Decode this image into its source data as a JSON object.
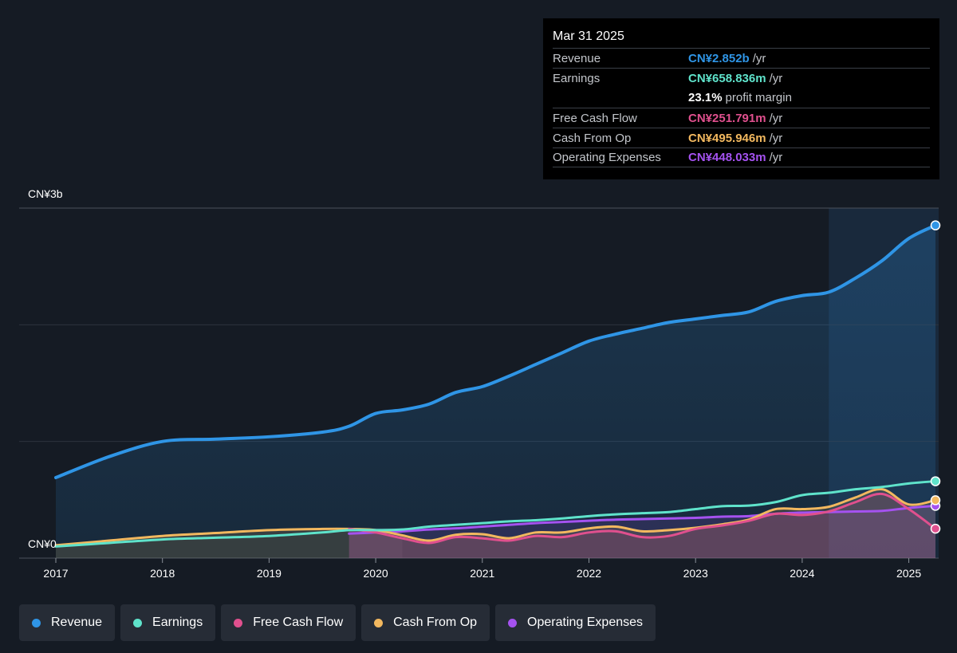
{
  "tooltip": {
    "date": "Mar 31 2025",
    "rows": [
      {
        "label": "Revenue",
        "value": "CN¥2.852b",
        "unit": "/yr",
        "color": "#2f95e6"
      },
      {
        "label": "Earnings",
        "value": "CN¥658.836m",
        "unit": "/yr",
        "color": "#5fe3cb"
      },
      {
        "label": "",
        "value": "23.1%",
        "unit": "profit margin",
        "color": "#ffffff"
      },
      {
        "label": "Free Cash Flow",
        "value": "CN¥251.791m",
        "unit": "/yr",
        "color": "#e0508e"
      },
      {
        "label": "Cash From Op",
        "value": "CN¥495.946m",
        "unit": "/yr",
        "color": "#f2b85f"
      },
      {
        "label": "Operating Expenses",
        "value": "CN¥448.033m",
        "unit": "/yr",
        "color": "#a552f0"
      }
    ]
  },
  "legend": [
    {
      "label": "Revenue",
      "color": "#2f95e6"
    },
    {
      "label": "Earnings",
      "color": "#5fe3cb"
    },
    {
      "label": "Free Cash Flow",
      "color": "#e0508e"
    },
    {
      "label": "Cash From Op",
      "color": "#f2b85f"
    },
    {
      "label": "Operating Expenses",
      "color": "#a552f0"
    }
  ],
  "chart_data": {
    "type": "area",
    "y_top_label": "CN¥3b",
    "y_zero_label": "CN¥0",
    "ylim": [
      0,
      3000
    ],
    "xlim": [
      2016.6,
      2025.25
    ],
    "x_ticks": [
      "2017",
      "2018",
      "2019",
      "2020",
      "2021",
      "2022",
      "2023",
      "2024",
      "2025"
    ],
    "gridlines": [
      0,
      1000,
      2000,
      3000
    ],
    "highlight_start": 2024.25,
    "past_shade_range": [
      2019.75,
      2020.25
    ],
    "series": [
      {
        "name": "Revenue",
        "color": "#2f95e6",
        "area": true,
        "x": [
          2017.0,
          2017.5,
          2018.0,
          2018.5,
          2019.0,
          2019.5,
          2019.75,
          2020.0,
          2020.25,
          2020.5,
          2020.75,
          2021.0,
          2021.25,
          2021.5,
          2021.75,
          2022.0,
          2022.25,
          2022.5,
          2022.75,
          2023.0,
          2023.25,
          2023.5,
          2023.75,
          2024.0,
          2024.25,
          2024.5,
          2024.75,
          2025.0,
          2025.25
        ],
        "y": [
          690,
          870,
          1000,
          1020,
          1040,
          1080,
          1130,
          1240,
          1270,
          1320,
          1420,
          1470,
          1560,
          1660,
          1760,
          1860,
          1920,
          1970,
          2020,
          2050,
          2080,
          2110,
          2200,
          2250,
          2280,
          2400,
          2550,
          2740,
          2852
        ]
      },
      {
        "name": "Earnings",
        "color": "#5fe3cb",
        "area": false,
        "x": [
          2017.0,
          2017.5,
          2018.0,
          2018.5,
          2019.0,
          2019.5,
          2019.75,
          2020.0,
          2020.25,
          2020.5,
          2020.75,
          2021.0,
          2021.25,
          2021.5,
          2021.75,
          2022.0,
          2022.25,
          2022.5,
          2022.75,
          2023.0,
          2023.25,
          2023.5,
          2023.75,
          2024.0,
          2024.25,
          2024.5,
          2024.75,
          2025.0,
          2025.25
        ],
        "y": [
          100,
          130,
          160,
          175,
          190,
          220,
          240,
          240,
          245,
          270,
          285,
          300,
          315,
          325,
          340,
          360,
          375,
          385,
          395,
          420,
          445,
          450,
          480,
          540,
          560,
          590,
          610,
          640,
          659
        ]
      },
      {
        "name": "Free Cash Flow",
        "color": "#e0508e",
        "area": true,
        "x": [
          2019.75,
          2020.0,
          2020.25,
          2020.5,
          2020.75,
          2021.0,
          2021.25,
          2021.5,
          2021.75,
          2022.0,
          2022.25,
          2022.5,
          2022.75,
          2023.0,
          2023.25,
          2023.5,
          2023.75,
          2024.0,
          2024.25,
          2024.5,
          2024.75,
          2025.0,
          2025.25
        ],
        "y": [
          250,
          220,
          170,
          130,
          180,
          170,
          150,
          190,
          180,
          220,
          230,
          180,
          190,
          250,
          280,
          320,
          380,
          370,
          400,
          480,
          550,
          420,
          252
        ]
      },
      {
        "name": "Cash From Op",
        "color": "#f2b85f",
        "area": true,
        "x": [
          2017.0,
          2017.5,
          2018.0,
          2018.5,
          2019.0,
          2019.5,
          2019.75,
          2020.0,
          2020.25,
          2020.5,
          2020.75,
          2021.0,
          2021.25,
          2021.5,
          2021.75,
          2022.0,
          2022.25,
          2022.5,
          2022.75,
          2023.0,
          2023.25,
          2023.5,
          2023.75,
          2024.0,
          2024.25,
          2024.5,
          2024.75,
          2025.0,
          2025.25
        ],
        "y": [
          110,
          150,
          190,
          215,
          240,
          250,
          250,
          240,
          195,
          150,
          200,
          205,
          170,
          220,
          220,
          255,
          270,
          230,
          240,
          260,
          290,
          330,
          420,
          420,
          440,
          520,
          590,
          460,
          496
        ]
      },
      {
        "name": "Operating Expenses",
        "color": "#a552f0",
        "area": true,
        "x": [
          2019.75,
          2020.0,
          2020.25,
          2020.5,
          2020.75,
          2021.0,
          2021.25,
          2021.5,
          2021.75,
          2022.0,
          2022.25,
          2022.5,
          2022.75,
          2023.0,
          2023.25,
          2023.5,
          2023.75,
          2024.0,
          2024.25,
          2024.5,
          2024.75,
          2025.0,
          2025.25
        ],
        "y": [
          210,
          220,
          230,
          245,
          255,
          270,
          285,
          300,
          310,
          320,
          330,
          335,
          340,
          345,
          355,
          360,
          380,
          390,
          395,
          400,
          405,
          430,
          448
        ]
      }
    ]
  }
}
